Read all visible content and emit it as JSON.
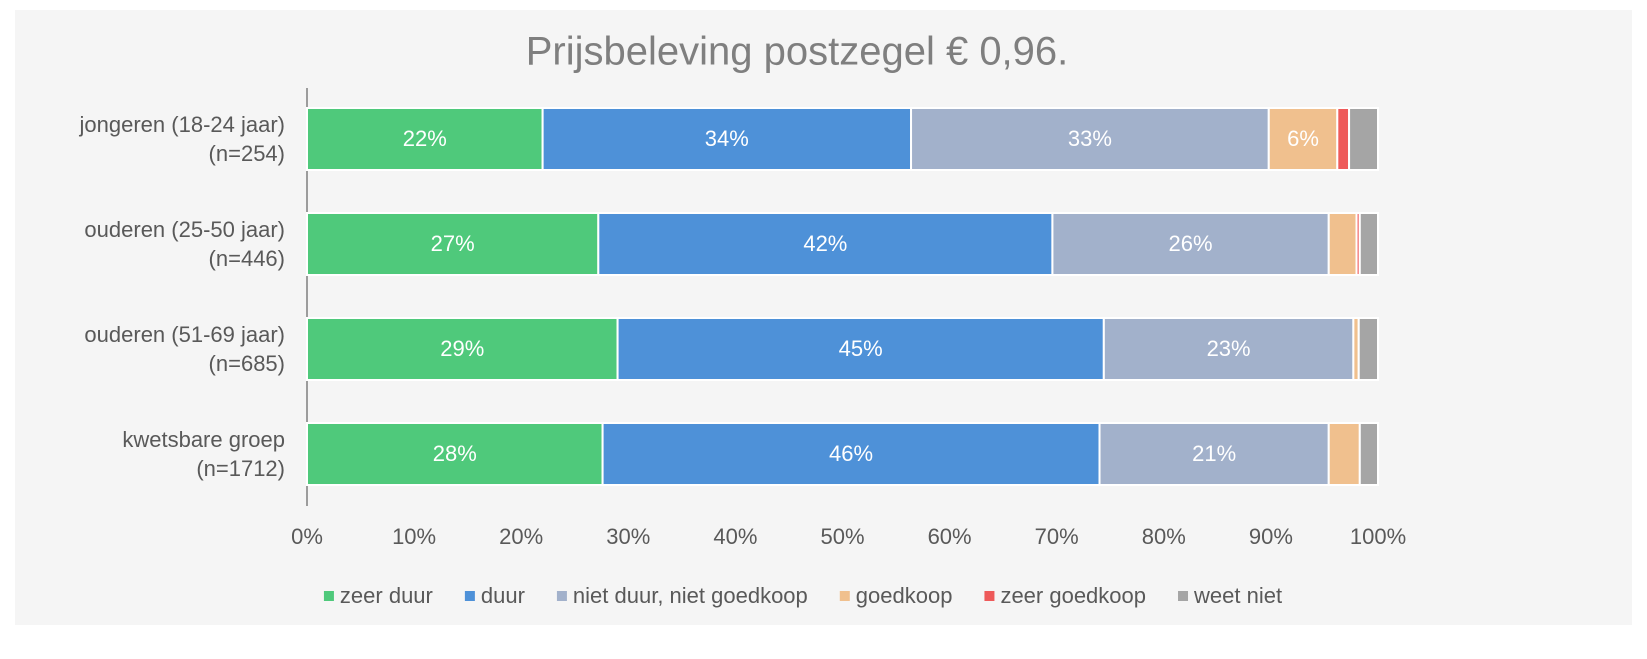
{
  "chart_data": {
    "type": "bar",
    "orientation": "horizontal",
    "stacked": true,
    "title": "Prijsbeleving postzegel € 0,96.",
    "categories": [
      "jongeren (18-24 jaar)\n(n=254)",
      "ouderen (25-50 jaar)\n(n=446)",
      "ouderen (51-69 jaar)\n(n=685)",
      "kwetsbare groep\n(n=1712)"
    ],
    "series": [
      {
        "name": "zeer duur",
        "color": "#4fc97b",
        "values": [
          22.0,
          27.2,
          29.0,
          27.6
        ],
        "value_labels": [
          "22%",
          "27%",
          "29%",
          "28%"
        ]
      },
      {
        "name": "duur",
        "color": "#4e91d8",
        "values": [
          34.4,
          42.4,
          45.4,
          46.4
        ],
        "value_labels": [
          "34%",
          "42%",
          "45%",
          "46%"
        ]
      },
      {
        "name": "niet duur, niet goedkoop",
        "color": "#a2b1cb",
        "values": [
          33.4,
          25.8,
          23.3,
          21.4
        ],
        "value_labels": [
          "33%",
          "26%",
          "23%",
          "21%"
        ]
      },
      {
        "name": "goedkoop",
        "color": "#f0c08e",
        "values": [
          6.4,
          2.6,
          0.5,
          2.9
        ],
        "value_labels": [
          "6%",
          null,
          null,
          null
        ]
      },
      {
        "name": "zeer goedkoop",
        "color": "#ee5a5a",
        "values": [
          1.1,
          0.3,
          0,
          0
        ]
      },
      {
        "name": "weet niet",
        "color": "#a5a5a5",
        "values": [
          2.7,
          1.7,
          1.8,
          1.7
        ]
      }
    ],
    "xlim": [
      0,
      100
    ],
    "xticks": [
      {
        "value": 0,
        "label": "0%"
      },
      {
        "value": 10,
        "label": "10%"
      },
      {
        "value": 20,
        "label": "20%"
      },
      {
        "value": 30,
        "label": "30%"
      },
      {
        "value": 40,
        "label": "40%"
      },
      {
        "value": 50,
        "label": "50%"
      },
      {
        "value": 60,
        "label": "60%"
      },
      {
        "value": 70,
        "label": "70%"
      },
      {
        "value": 80,
        "label": "80%"
      },
      {
        "value": 90,
        "label": "90%"
      },
      {
        "value": 100,
        "label": "100%"
      }
    ],
    "legend": "bottom"
  }
}
